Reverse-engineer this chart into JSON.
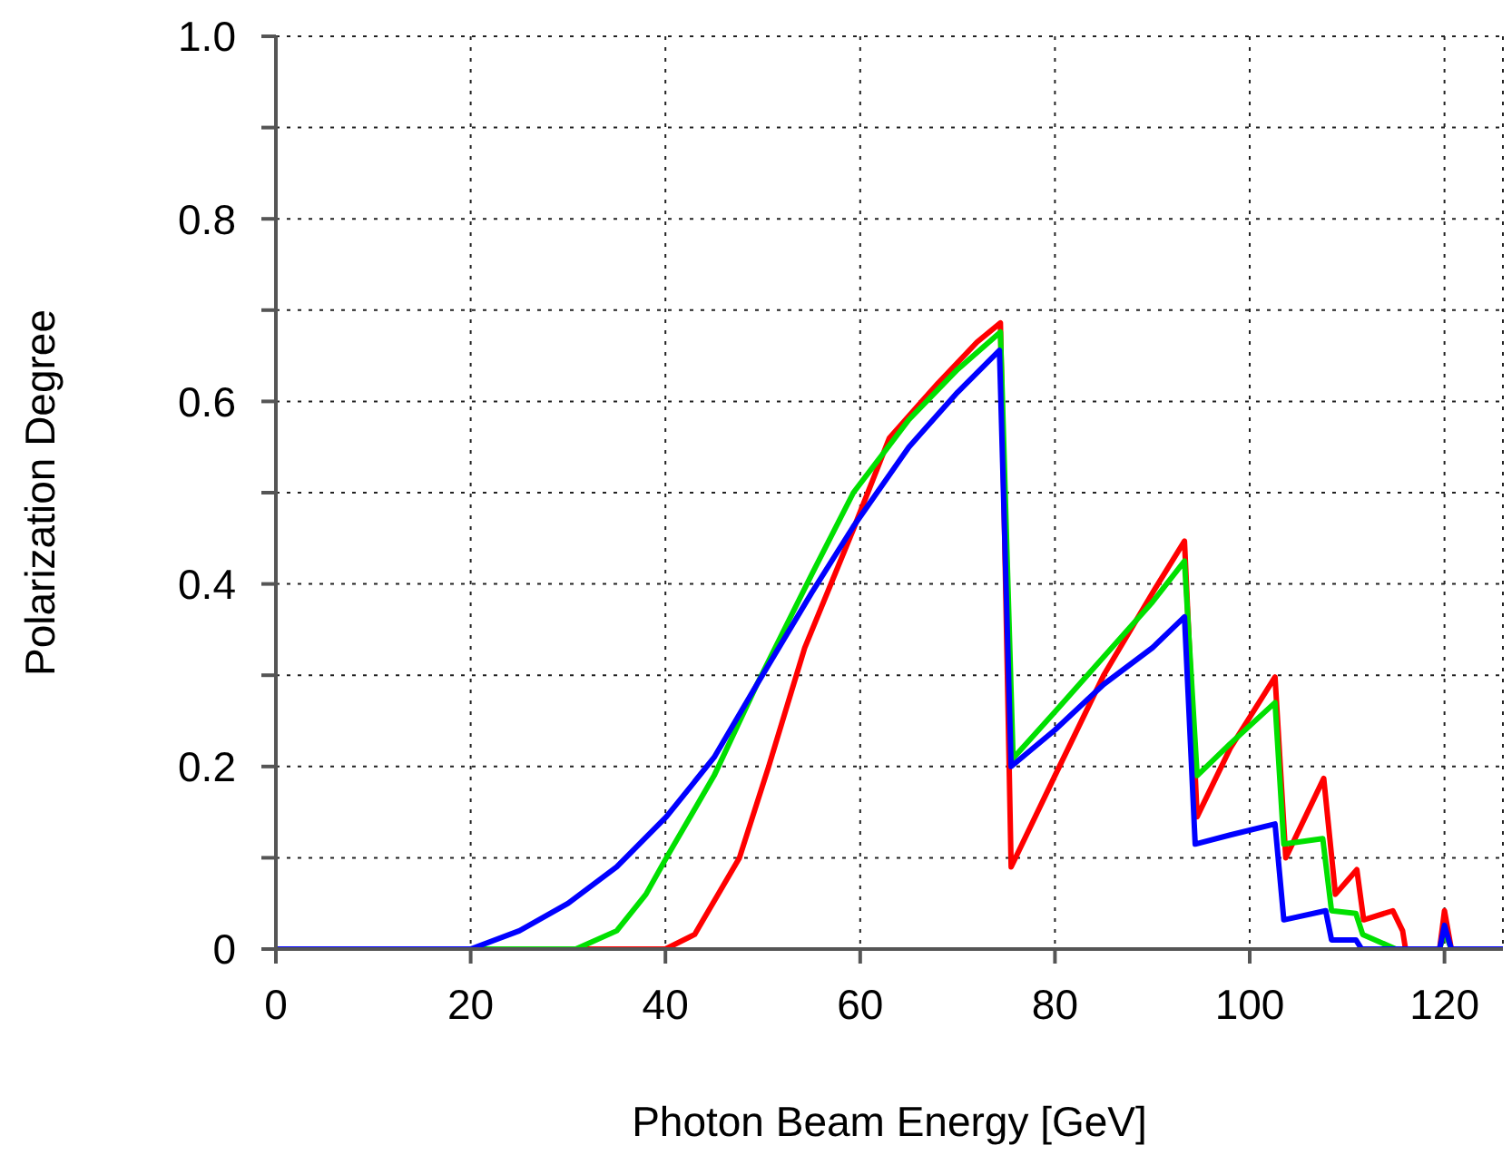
{
  "chart_data": {
    "type": "line",
    "xlabel": "Photon Beam Energy [GeV]",
    "ylabel": "Polarization Degree",
    "xlim": [
      0,
      126
    ],
    "xticks": [
      0,
      20,
      40,
      60,
      80,
      100,
      120
    ],
    "ylim": [
      0,
      1
    ],
    "yticks": [
      0,
      {
        "value": 0.1,
        "label": null
      },
      0.2,
      {
        "value": 0.3,
        "label": null
      },
      0.4,
      {
        "value": 0.5,
        "label": null
      },
      0.6,
      {
        "value": 0.7,
        "label": null
      },
      0.8,
      {
        "value": 0.9,
        "label": null
      },
      {
        "value": 1,
        "label": "1.0"
      }
    ],
    "grid": true,
    "marker": "none",
    "line_style": "solid",
    "series": [
      {
        "color": "#ff0000",
        "x": [
          0,
          40,
          43,
          47.6,
          50.6,
          54.3,
          59.3,
          63,
          68,
          72,
          74.4,
          75.5,
          80,
          85,
          90,
          93.3,
          94.6,
          98,
          102.6,
          103.7,
          107.6,
          108.8,
          111,
          111.7,
          114.7,
          115.7,
          116,
          119.5,
          120,
          120.7,
          126
        ],
        "values": [
          0,
          0,
          0.016,
          0.1,
          0.2,
          0.33,
          0.46,
          0.56,
          0.62,
          0.665,
          0.686,
          0.09,
          0.19,
          0.3,
          0.39,
          0.447,
          0.145,
          0.22,
          0.298,
          0.1,
          0.187,
          0.06,
          0.087,
          0.032,
          0.042,
          0.02,
          0,
          0,
          0.042,
          0,
          0
        ]
      },
      {
        "color": "#00e000",
        "x": [
          0,
          30.8,
          35,
          38,
          40.1,
          45,
          49.4,
          55,
          59.3,
          65,
          70,
          74.4,
          75.7,
          80,
          85,
          90,
          93.3,
          94.6,
          98,
          102.6,
          103.5,
          107.5,
          108.4,
          110.9,
          111.6,
          115,
          119.5,
          120,
          120.7,
          126
        ],
        "values": [
          0,
          0,
          0.02,
          0.06,
          0.1,
          0.19,
          0.29,
          0.41,
          0.5,
          0.58,
          0.635,
          0.676,
          0.209,
          0.26,
          0.32,
          0.38,
          0.425,
          0.19,
          0.225,
          0.27,
          0.115,
          0.121,
          0.042,
          0.039,
          0.016,
          0,
          0,
          0.02,
          0,
          0
        ]
      },
      {
        "color": "#0000ff",
        "x": [
          0,
          20,
          25,
          30,
          35,
          40.1,
          45,
          49.4,
          55,
          59.3,
          65,
          70,
          74.3,
          75.5,
          80,
          85,
          90,
          93.3,
          94.4,
          98,
          102.6,
          103.5,
          107.8,
          108.4,
          110.9,
          111.5,
          119.5,
          120,
          120.7,
          126
        ],
        "values": [
          0,
          0,
          0.02,
          0.05,
          0.09,
          0.145,
          0.21,
          0.29,
          0.39,
          0.463,
          0.55,
          0.61,
          0.656,
          0.2,
          0.24,
          0.29,
          0.33,
          0.364,
          0.115,
          0.125,
          0.137,
          0.032,
          0.042,
          0.01,
          0.01,
          0,
          0,
          0.026,
          0,
          0
        ]
      }
    ]
  }
}
